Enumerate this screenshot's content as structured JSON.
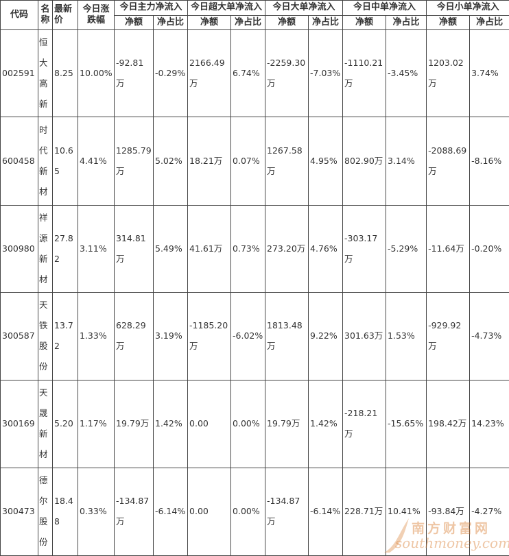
{
  "header": {
    "code": "代码",
    "name": "名称",
    "price": "最新价",
    "change": "今日涨跌幅",
    "groups": [
      "今日主力净流入",
      "今日超大单净流入",
      "今日大单净流入",
      "今日中单净流入",
      "今日小单净流入"
    ],
    "amount": "净额",
    "ratio": "净占比"
  },
  "rows": [
    {
      "code": "002591",
      "name": [
        "恒",
        "大",
        "高",
        "新"
      ],
      "price": "8.25",
      "change": "10.00%",
      "cells": [
        "-92.81万",
        "-0.29%",
        "2166.49万",
        "6.74%",
        "-2259.30万",
        "-7.03%",
        "-1110.21万",
        "-3.45%",
        "1203.02万",
        "3.74%"
      ]
    },
    {
      "code": "600458",
      "name": [
        "时",
        "代",
        "新",
        "材"
      ],
      "price": "10.65",
      "change": "4.41%",
      "cells": [
        "1285.79万",
        "5.02%",
        "18.21万",
        "0.07%",
        "1267.58万",
        "4.95%",
        "802.90万",
        "3.14%",
        "-2088.69万",
        "-8.16%"
      ]
    },
    {
      "code": "300980",
      "name": [
        "祥",
        "源",
        "新",
        "材"
      ],
      "price": "27.82",
      "change": "3.11%",
      "cells": [
        "314.81万",
        "5.49%",
        "41.61万",
        "0.73%",
        "273.20万",
        "4.76%",
        "-303.17万",
        "-5.29%",
        "-11.64万",
        "-0.20%"
      ]
    },
    {
      "code": "300587",
      "name": [
        "天",
        "铁",
        "股",
        "份"
      ],
      "price": "13.72",
      "change": "1.33%",
      "cells": [
        "628.29万",
        "3.19%",
        "-1185.20万",
        "-6.02%",
        "1813.48万",
        "9.22%",
        "301.63万",
        "1.53%",
        "-929.92万",
        "-4.73%"
      ]
    },
    {
      "code": "300169",
      "name": [
        "天",
        "晟",
        "新",
        "材"
      ],
      "price": "5.20",
      "change": "1.17%",
      "cells": [
        "19.79万",
        "1.42%",
        "0.00",
        "0.00%",
        "19.79万",
        "1.42%",
        "-218.21万",
        "-15.65%",
        "198.42万",
        "14.23%"
      ]
    },
    {
      "code": "300473",
      "name": [
        "德",
        "尔",
        "股",
        "份"
      ],
      "price": "18.48",
      "change": "0.33%",
      "cells": [
        "-134.87万",
        "-6.14%",
        "0.00",
        "0.00%",
        "-134.87万",
        "-6.14%",
        "228.71万",
        "10.41%",
        "-93.84万",
        "-4.27%"
      ]
    }
  ],
  "watermark": {
    "cn": "南方财富网",
    "en": "southmoney.com"
  }
}
